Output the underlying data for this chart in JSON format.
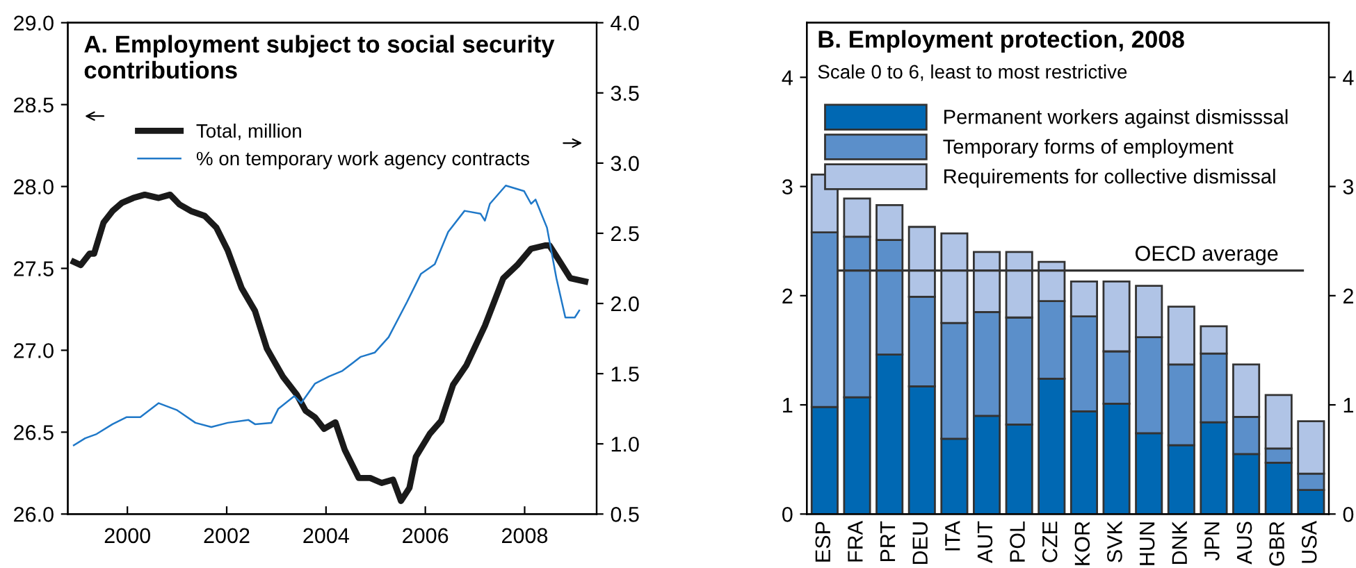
{
  "chart_data": [
    {
      "type": "line",
      "title": "A. Employment subject to social security\ncontributions",
      "legend": "top left",
      "grid": false,
      "xlim": [
        1998.8,
        2009.45
      ],
      "ylim": [
        26,
        29
      ],
      "y2lim": [
        0.5,
        4
      ],
      "xticks": [
        2000,
        2002,
        2004,
        2006,
        2008
      ],
      "yticks": [
        {
          "value": 26,
          "label": "26.0"
        },
        {
          "value": 26.5,
          "label": "26.5"
        },
        {
          "value": 27,
          "label": "27.0"
        },
        {
          "value": 27.5,
          "label": "27.5"
        },
        {
          "value": 28,
          "label": "28.0"
        },
        {
          "value": 28.5,
          "label": "28.5"
        },
        {
          "value": 29,
          "label": "29.0"
        }
      ],
      "y2ticks": [
        0.5,
        {
          "value": 1,
          "label": "1.0"
        },
        1.5,
        {
          "value": 2,
          "label": "2.0"
        },
        2.5,
        {
          "value": 3,
          "label": "3.0"
        },
        3.5,
        {
          "value": 4,
          "label": "4.0"
        }
      ],
      "series": [
        {
          "name": "Total, million",
          "color": "#1a1a1a",
          "x": [
            1998.92,
            1999.06,
            1999.24,
            1999.33,
            1999.52,
            1999.7,
            1999.89,
            2000.12,
            2000.35,
            2000.63,
            2000.86,
            2001.05,
            2001.28,
            2001.56,
            2001.79,
            2002.02,
            2002.3,
            2002.57,
            2002.81,
            2003.13,
            2003.41,
            2003.59,
            2003.78,
            2003.96,
            2004.19,
            2004.38,
            2004.66,
            2004.89,
            2005.12,
            2005.35,
            2005.51,
            2005.68,
            2005.81,
            2006.09,
            2006.32,
            2006.56,
            2006.83,
            2007.2,
            2007.57,
            2007.85,
            2008.13,
            2008.41,
            2008.5,
            2008.69,
            2008.92,
            2009.22
          ],
          "values": [
            27.54,
            27.52,
            27.59,
            27.59,
            27.78,
            27.85,
            27.9,
            27.93,
            27.95,
            27.93,
            27.95,
            27.89,
            27.85,
            27.82,
            27.75,
            27.61,
            27.38,
            27.24,
            27.01,
            26.84,
            26.73,
            26.63,
            26.59,
            26.52,
            26.56,
            26.39,
            26.22,
            26.22,
            26.19,
            26.21,
            26.08,
            26.16,
            26.35,
            26.49,
            26.57,
            26.79,
            26.91,
            27.15,
            27.44,
            27.52,
            27.62,
            27.64,
            27.64,
            27.55,
            27.44,
            27.42
          ]
        },
        {
          "name": "% on temporary work agency contracts",
          "color": "#1f78c8",
          "axis": "y2",
          "x": [
            1998.92,
            1999.15,
            1999.38,
            1999.7,
            1999.98,
            2000.26,
            2000.63,
            2001.0,
            2001.37,
            2001.69,
            2002.02,
            2002.44,
            2002.57,
            2002.9,
            2003.04,
            2003.36,
            2003.5,
            2003.78,
            2004.06,
            2004.33,
            2004.7,
            2004.98,
            2005.26,
            2005.63,
            2005.91,
            2006.19,
            2006.46,
            2006.79,
            2007.11,
            2007.2,
            2007.3,
            2007.62,
            2007.99,
            2008.13,
            2008.22,
            2008.45,
            2008.64,
            2008.82,
            2009.01,
            2009.1
          ],
          "values": [
            0.99,
            1.04,
            1.07,
            1.14,
            1.19,
            1.19,
            1.29,
            1.24,
            1.15,
            1.12,
            1.15,
            1.17,
            1.14,
            1.15,
            1.25,
            1.34,
            1.29,
            1.43,
            1.48,
            1.52,
            1.62,
            1.65,
            1.76,
            2.01,
            2.21,
            2.28,
            2.51,
            2.66,
            2.64,
            2.59,
            2.71,
            2.84,
            2.8,
            2.71,
            2.74,
            2.54,
            2.18,
            1.9,
            1.9,
            1.95
          ]
        }
      ]
    },
    {
      "type": "bar",
      "stacked": true,
      "title": "B. Employment protection, 2008",
      "subtitle": "Scale 0 to 6, least to most restrictive",
      "legend": "top left",
      "grid": false,
      "categories": [
        "ESP",
        "FRA",
        "PRT",
        "DEU",
        "ITA",
        "AUT",
        "POL",
        "CZE",
        "KOR",
        "SVK",
        "HUN",
        "DNK",
        "JPN",
        "AUS",
        "GBR",
        "USA"
      ],
      "ylim": [
        0,
        4.5
      ],
      "yticks": [
        0,
        1,
        2,
        3,
        4
      ],
      "y2lim": [
        0,
        4.5
      ],
      "y2ticks": [
        0,
        1,
        2,
        3,
        4
      ],
      "ref_lines": [
        {
          "axis": "y",
          "value": 2.23,
          "label": "OECD average",
          "color": "#333333"
        }
      ],
      "series": [
        {
          "name": "Permanent workers against dismisssal",
          "color": "#0068b3",
          "values": [
            0.98,
            1.07,
            1.46,
            1.17,
            0.69,
            0.9,
            0.82,
            1.24,
            0.94,
            1.01,
            0.74,
            0.63,
            0.84,
            0.55,
            0.47,
            0.22
          ]
        },
        {
          "name": "Temporary forms of employment",
          "color": "#5b8fca",
          "values": [
            1.6,
            1.47,
            1.05,
            0.82,
            1.06,
            0.95,
            0.98,
            0.71,
            0.87,
            0.48,
            0.88,
            0.74,
            0.63,
            0.34,
            0.13,
            0.15
          ]
        },
        {
          "name": "Requirements for collective dismissal",
          "color": "#b0c4e6",
          "values": [
            0.53,
            0.35,
            0.32,
            0.64,
            0.82,
            0.55,
            0.6,
            0.36,
            0.32,
            0.64,
            0.47,
            0.53,
            0.25,
            0.48,
            0.49,
            0.48
          ]
        }
      ]
    }
  ]
}
